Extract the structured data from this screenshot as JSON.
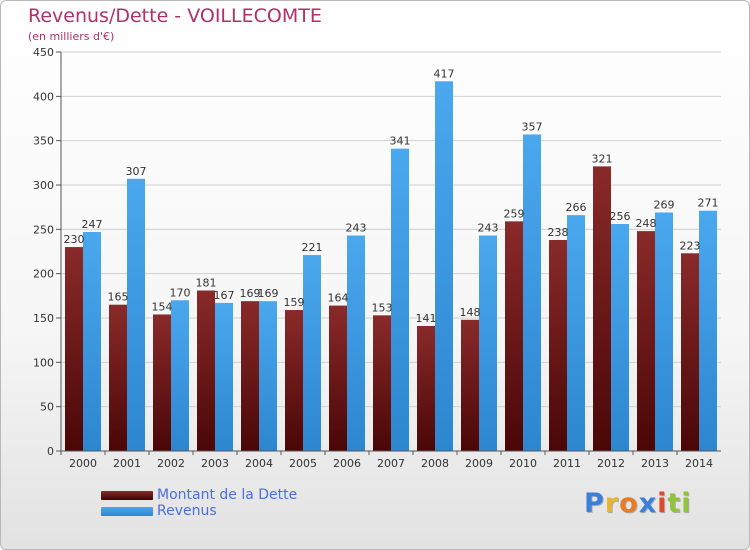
{
  "chart_data": {
    "type": "bar",
    "title": "Revenus/Dette - VOILLECOMTE",
    "subtitle": "(en milliers d'€)",
    "categories": [
      "2000",
      "2001",
      "2002",
      "2003",
      "2004",
      "2005",
      "2006",
      "2007",
      "2008",
      "2009",
      "2010",
      "2011",
      "2012",
      "2013",
      "2014"
    ],
    "series": [
      {
        "name": "Montant de la Dette",
        "color": "#7a1e1e",
        "values": [
          230,
          165,
          154,
          181,
          169,
          159,
          164,
          153,
          141,
          148,
          259,
          238,
          321,
          248,
          223
        ]
      },
      {
        "name": "Revenus",
        "color": "#3f9ee6",
        "values": [
          247,
          307,
          170,
          167,
          169,
          221,
          243,
          341,
          417,
          243,
          357,
          266,
          256,
          269,
          271
        ]
      }
    ],
    "yticks": [
      0,
      50,
      100,
      150,
      200,
      250,
      300,
      350,
      400,
      450
    ],
    "ylim": [
      0,
      450
    ],
    "grid": true,
    "legend_position": "bottom-left"
  },
  "logo": {
    "letters": [
      "P",
      "r",
      "o",
      "x",
      "i",
      "t",
      "i"
    ],
    "colors": [
      "#3b7fd8",
      "#e8b531",
      "#e67c23",
      "#3b7fd8",
      "#e04a2a",
      "#8fc43c",
      "#8fc43c"
    ]
  }
}
